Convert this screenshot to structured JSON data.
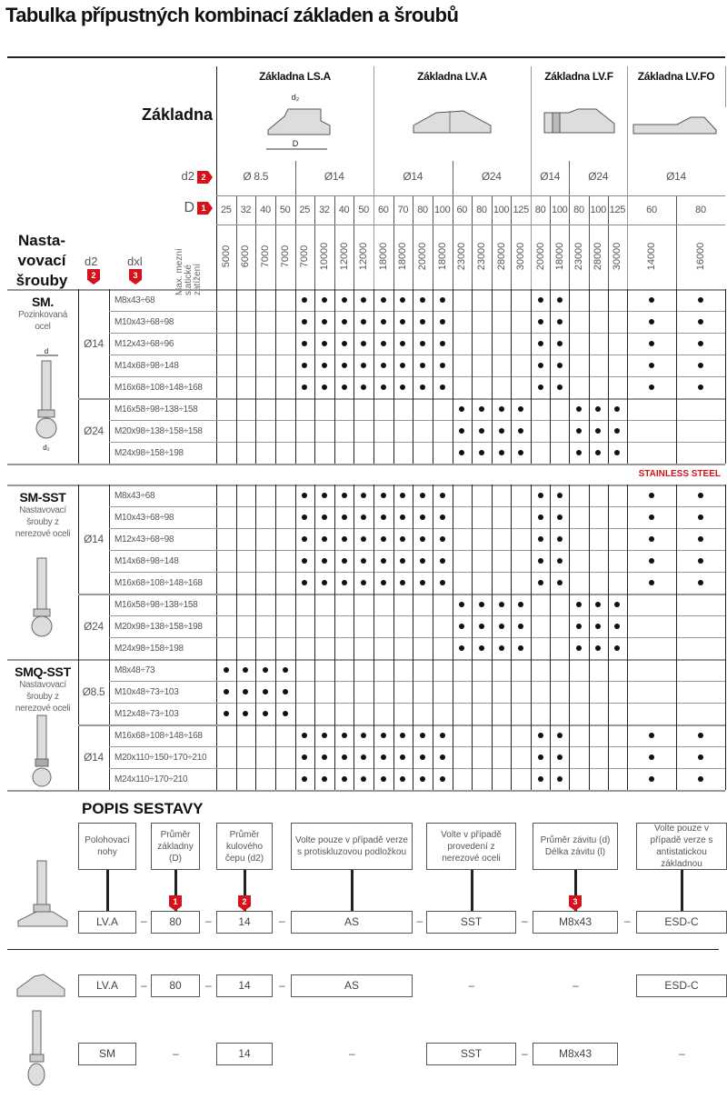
{
  "title": "Tabulka přípustných kombinací základen a šroubů",
  "header": {
    "base_label": "Základna",
    "d2_label": "d2",
    "D_label": "D",
    "screws_label": [
      "Nasta-",
      "vovací",
      "šrouby"
    ],
    "col_d2_label": "d2",
    "col_dxl_label": "dxl",
    "load_label": [
      "Max. mezní",
      "statické",
      "zatížení"
    ],
    "marker_D": "1",
    "marker_d2": "2",
    "marker_dxl": "3",
    "drawing_labels": {
      "d2": "d₂",
      "D": "D",
      "d": "d",
      "l": "l"
    }
  },
  "bases": [
    {
      "name": "Základna LS.A",
      "d2": [
        {
          "label": "Ø 8.5",
          "span": 4
        },
        {
          "label": "Ø14",
          "span": 4
        }
      ],
      "D": [
        "25",
        "32",
        "40",
        "50",
        "25",
        "32",
        "40",
        "50"
      ],
      "loads": [
        "5000",
        "6000",
        "7000",
        "7000",
        "7000",
        "10000",
        "12000",
        "12000"
      ]
    },
    {
      "name": "Základna LV.A",
      "d2": [
        {
          "label": "Ø14",
          "span": 4
        },
        {
          "label": "Ø24",
          "span": 4
        }
      ],
      "D": [
        "60",
        "70",
        "80",
        "100",
        "60",
        "80",
        "100",
        "125"
      ],
      "loads": [
        "18000",
        "18000",
        "20000",
        "18000",
        "23000",
        "23000",
        "28000",
        "30000"
      ]
    },
    {
      "name": "Základna LV.F",
      "d2": [
        {
          "label": "Ø14",
          "span": 2
        },
        {
          "label": "Ø24",
          "span": 3
        }
      ],
      "D": [
        "80",
        "100",
        "80",
        "100",
        "125"
      ],
      "loads": [
        "20000",
        "18000",
        "23000",
        "28000",
        "30000"
      ]
    },
    {
      "name": "Základna LV.FO",
      "d2": [
        {
          "label": "Ø14",
          "span": 2
        }
      ],
      "D": [
        "60",
        "80"
      ],
      "loads": [
        "14000",
        "16000"
      ]
    }
  ],
  "stainless_label": "STAINLESS STEEL",
  "colors": {
    "accent": "#d6111c",
    "dot": "#111111"
  },
  "screw_groups": [
    {
      "name": "SM.",
      "desc": [
        "Pozinkovaná",
        "ocel"
      ],
      "subgroups": [
        {
          "d2": "Ø14",
          "fit": "00001111111100001100011",
          "threads": [
            "M8x43÷68",
            "M10x43÷68÷98",
            "M12x43÷68÷96",
            "M14x68÷98÷148",
            "M16x68÷108÷148÷168"
          ]
        },
        {
          "d2": "Ø24",
          "fit": "00000000000011110011100",
          "threads": [
            "M16x58÷98÷138÷158",
            "M20x98÷138÷158÷158",
            "M24x98÷158÷198"
          ]
        }
      ]
    },
    {
      "name": "SM-SST",
      "desc": [
        "Nastavovací",
        "šrouby z",
        "nerezové oceli"
      ],
      "subgroups": [
        {
          "d2": "Ø14",
          "fit": "00001111111100001100011",
          "threads": [
            "M8x43÷68",
            "M10x43÷68÷98",
            "M12x43÷68÷98",
            "M14x68÷98÷148",
            "M16x68÷108÷148÷168"
          ]
        },
        {
          "d2": "Ø24",
          "fit": "00000000000011110011100",
          "threads": [
            "M16x58÷98÷138÷158",
            "M20x98÷138÷158÷198",
            "M24x98÷158÷198"
          ]
        }
      ]
    },
    {
      "name": "SMQ-SST",
      "desc": [
        "Nastavovací",
        "šrouby z",
        "nerezové oceli"
      ],
      "subgroups": [
        {
          "d2": "Ø8.5",
          "fit": "11110000000000000000000",
          "threads": [
            "M8x48÷73",
            "M10x48÷73÷103",
            "M12x48÷73÷103"
          ]
        },
        {
          "d2": "Ø14",
          "fit": "00001111111100001100011",
          "threads": [
            "M16x68÷108÷148÷168",
            "M20x110÷150÷170÷210",
            "M24x110÷170÷210"
          ]
        }
      ]
    }
  ],
  "assembly": {
    "title": "POPIS SESTAVY",
    "descriptions": [
      "Polohovací nohy",
      "Průměr základny (D)",
      "Průměr kulového čepu (d2)",
      "Volte pouze v případě verze s protiskluzovou podložkou",
      "Volte v případě provedení z nerezové oceli",
      "Průměr závitu (d) Délka závitu (l)",
      "Volte pouze v případě verze s antistatickou základnou"
    ],
    "markers": [
      "",
      "1",
      "2",
      "",
      "",
      "3",
      ""
    ],
    "example": [
      "LV.A",
      "80",
      "14",
      "AS",
      "SST",
      "M8x43",
      "ESD-C"
    ],
    "separator": "–",
    "base_row": [
      "LV.A",
      "80",
      "14",
      "AS",
      "",
      "",
      "ESD-C"
    ],
    "screw_row": [
      "SM",
      "",
      "14",
      "",
      "SST",
      "M8x43",
      ""
    ]
  }
}
